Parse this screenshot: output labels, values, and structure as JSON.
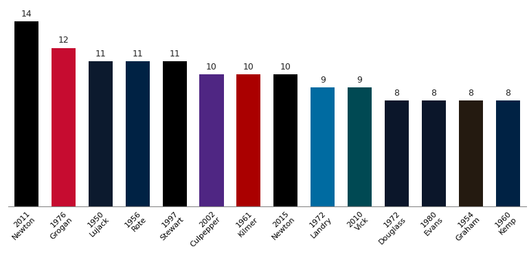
{
  "chart_data": {
    "type": "bar",
    "categories": [
      "2011\nNewton",
      "1976\nGrogan",
      "1950\nLujack",
      "1956\nRote",
      "1997\nStewart",
      "2002\nCulpepper",
      "1961\nKilmer",
      "2015\nNewton",
      "1972\nLandry",
      "2010\nVick",
      "1972\nDouglass",
      "1980\nEvans",
      "1954\nGraham",
      "1960\nKemp"
    ],
    "values": [
      14,
      12,
      11,
      11,
      11,
      10,
      10,
      10,
      9,
      9,
      8,
      8,
      8,
      8
    ],
    "colors": [
      "#000000",
      "#c60c30",
      "#0c1a2e",
      "#002244",
      "#000000",
      "#4f2683",
      "#aa0000",
      "#000000",
      "#006ba1",
      "#004953",
      "#0b162a",
      "#0b162a",
      "#241a10",
      "#002244"
    ],
    "ylim": [
      0,
      14
    ],
    "yticks": [],
    "data_labels": true,
    "tick_labels": "x",
    "grid": false
  }
}
